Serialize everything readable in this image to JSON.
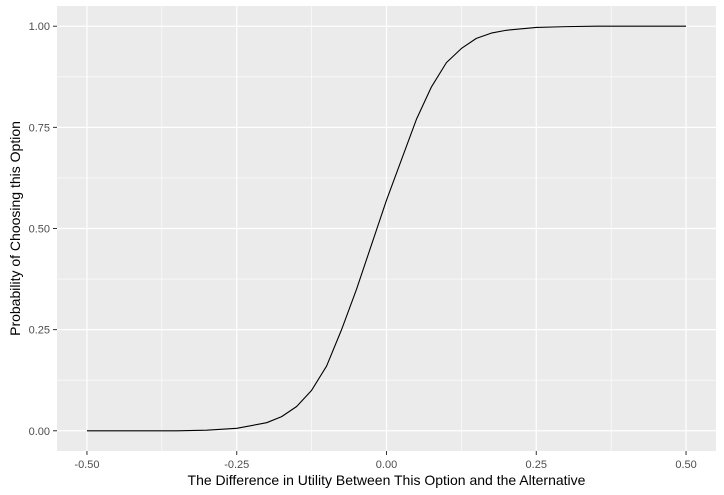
{
  "chart_data": {
    "type": "line",
    "title": "",
    "xlabel": "The Difference in Utility Between This Option and the Alternative",
    "ylabel": "Probability of Choosing this Option",
    "xlim": [
      -0.5,
      0.5
    ],
    "ylim": [
      0.0,
      1.0
    ],
    "x_ticks": [
      "-0.50",
      "-0.25",
      "0.00",
      "0.25",
      "0.50"
    ],
    "y_ticks": [
      "0.00",
      "0.25",
      "0.50",
      "0.75",
      "1.00"
    ],
    "grid": true,
    "legend": "none",
    "series": [
      {
        "color": "#000000",
        "x": [
          -0.5,
          -0.45,
          -0.4,
          -0.35,
          -0.3,
          -0.25,
          -0.2,
          -0.175,
          -0.15,
          -0.125,
          -0.1,
          -0.075,
          -0.05,
          -0.025,
          0.0,
          0.025,
          0.05,
          0.075,
          0.1,
          0.125,
          0.15,
          0.175,
          0.2,
          0.25,
          0.3,
          0.35,
          0.4,
          0.45,
          0.5
        ],
        "y": [
          0.0,
          0.0,
          0.0,
          0.0,
          0.0015,
          0.006,
          0.02,
          0.035,
          0.06,
          0.1,
          0.16,
          0.25,
          0.35,
          0.46,
          0.57,
          0.67,
          0.77,
          0.85,
          0.91,
          0.945,
          0.97,
          0.983,
          0.99,
          0.997,
          0.999,
          1.0,
          1.0,
          1.0,
          1.0
        ]
      }
    ]
  },
  "colors": {
    "panel_background": "#ebebeb",
    "grid_major": "#ffffff",
    "tick_color": "#333333"
  }
}
